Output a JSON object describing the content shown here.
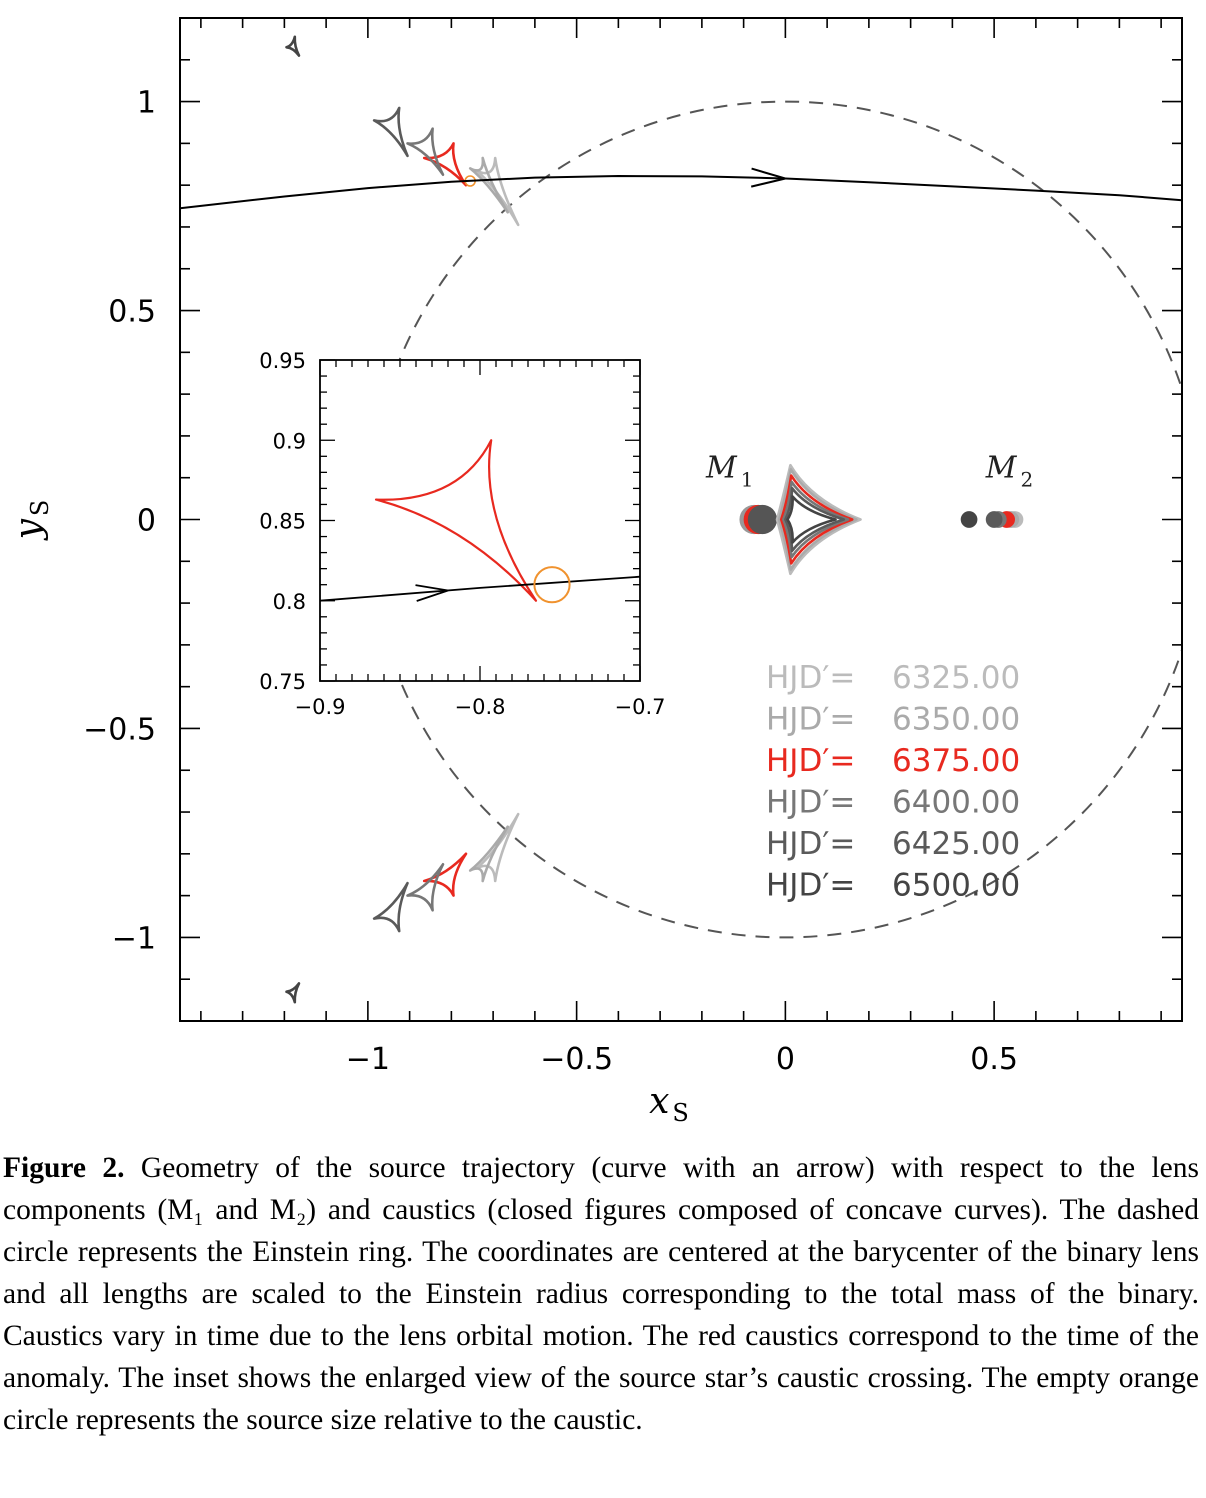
{
  "chart_data": {
    "type": "line",
    "x_axis": {
      "label": "x",
      "label_sub": "S",
      "range": [
        -1.45,
        0.95
      ],
      "ticks": [
        -1,
        -0.5,
        0,
        0.5
      ],
      "tick_labels": [
        "−1",
        "−0.5",
        "0",
        "0.5"
      ]
    },
    "y_axis": {
      "label": "y",
      "label_sub": "S",
      "range": [
        -1.2,
        1.2
      ],
      "ticks": [
        -1,
        -0.5,
        0,
        0.5,
        1
      ],
      "tick_labels": [
        "−1",
        "−0.5",
        "0",
        "0.5",
        "1"
      ]
    },
    "einstein_ring": {
      "center": [
        0,
        0
      ],
      "radius": 1.0,
      "style": "dashed",
      "color": "#555555"
    },
    "trajectory": {
      "color": "#000000",
      "x": [
        -1.45,
        -1.2,
        -1.0,
        -0.8,
        -0.6,
        -0.4,
        -0.2,
        0.0,
        0.2,
        0.4,
        0.6,
        0.8,
        0.95
      ],
      "y": [
        0.745,
        0.773,
        0.793,
        0.808,
        0.818,
        0.822,
        0.821,
        0.816,
        0.807,
        0.797,
        0.787,
        0.776,
        0.764
      ],
      "arrow_at_x": 0.0
    },
    "lens_labels": [
      {
        "text": "M",
        "sub": "1",
        "x": -0.19,
        "y": 0.1
      },
      {
        "text": "M",
        "sub": "2",
        "x": 0.48,
        "y": 0.1
      }
    ],
    "lens_positions": [
      {
        "x": -0.075,
        "y": 0.0,
        "color": "#999999",
        "r": 0.035
      },
      {
        "x": -0.065,
        "y": 0.0,
        "color": "#e8291f",
        "r": 0.035
      },
      {
        "x": -0.055,
        "y": 0.0,
        "color": "#555555",
        "r": 0.035
      },
      {
        "x": 0.55,
        "y": 0.0,
        "color": "#bbbbbb",
        "r": 0.02
      },
      {
        "x": 0.54,
        "y": 0.0,
        "color": "#aaaaaa",
        "r": 0.02
      },
      {
        "x": 0.53,
        "y": 0.0,
        "color": "#e8291f",
        "r": 0.02
      },
      {
        "x": 0.51,
        "y": 0.0,
        "color": "#777777",
        "r": 0.02
      },
      {
        "x": 0.5,
        "y": 0.0,
        "color": "#5a5a5a",
        "r": 0.02
      },
      {
        "x": 0.44,
        "y": 0.0,
        "color": "#444444",
        "r": 0.02
      }
    ],
    "central_caustics": [
      {
        "cx": 0.02,
        "cy": 0.0,
        "back": -0.04,
        "tip": 0.16,
        "top": 0.13,
        "color": "#bbbbbb"
      },
      {
        "cx": 0.02,
        "cy": 0.0,
        "back": -0.035,
        "tip": 0.15,
        "top": 0.12,
        "color": "#aaaaaa"
      },
      {
        "cx": 0.02,
        "cy": 0.0,
        "back": -0.03,
        "tip": 0.14,
        "top": 0.105,
        "color": "#e8291f"
      },
      {
        "cx": 0.02,
        "cy": 0.0,
        "back": -0.025,
        "tip": 0.13,
        "top": 0.09,
        "color": "#777777"
      },
      {
        "cx": 0.02,
        "cy": 0.0,
        "back": -0.02,
        "tip": 0.12,
        "top": 0.075,
        "color": "#5a5a5a"
      },
      {
        "cx": 0.02,
        "cy": 0.0,
        "back": -0.015,
        "tip": 0.1,
        "top": 0.055,
        "color": "#444444"
      }
    ],
    "planetary_caustics": [
      {
        "cusps": [
          [
            -0.74,
            0.835
          ],
          [
            -0.64,
            0.705
          ],
          [
            -0.695,
            0.865
          ]
        ],
        "color": "#bbbbbb"
      },
      {
        "cusps": [
          [
            -0.755,
            0.84
          ],
          [
            -0.665,
            0.735
          ],
          [
            -0.725,
            0.865
          ]
        ],
        "color": "#aaaaaa"
      },
      {
        "cusps": [
          [
            -0.865,
            0.865
          ],
          [
            -0.765,
            0.8
          ],
          [
            -0.795,
            0.9
          ]
        ],
        "color": "#e8291f"
      },
      {
        "cusps": [
          [
            -0.905,
            0.9
          ],
          [
            -0.82,
            0.825
          ],
          [
            -0.845,
            0.935
          ]
        ],
        "color": "#777777"
      },
      {
        "cusps": [
          [
            -0.985,
            0.955
          ],
          [
            -0.905,
            0.87
          ],
          [
            -0.925,
            0.985
          ]
        ],
        "color": "#5a5a5a"
      },
      {
        "cusps": [
          [
            -1.195,
            1.13
          ],
          [
            -1.165,
            1.11
          ],
          [
            -1.175,
            1.155
          ]
        ],
        "color": "#444444"
      }
    ],
    "inset": {
      "x_range": [
        -0.9,
        -0.7
      ],
      "y_range": [
        0.75,
        0.95
      ],
      "x_ticks": [
        -0.9,
        -0.8,
        -0.7
      ],
      "x_tick_labels": [
        "−0.9",
        "−0.8",
        "−0.7"
      ],
      "y_ticks": [
        0.75,
        0.8,
        0.85,
        0.9,
        0.95
      ],
      "y_tick_labels": [
        "0.75",
        "0.8",
        "0.85",
        "0.9",
        "0.95"
      ],
      "caustic": {
        "cusps": [
          [
            -0.865,
            0.863
          ],
          [
            -0.765,
            0.8
          ],
          [
            -0.793,
            0.9
          ]
        ],
        "color": "#e8291f"
      },
      "trajectory": {
        "x": [
          -0.9,
          -0.8,
          -0.7
        ],
        "y": [
          0.8,
          0.808,
          0.815
        ],
        "arrow_at_x": -0.82
      },
      "source": {
        "x": -0.755,
        "y": 0.81,
        "r": 0.011,
        "color": "#f0922e"
      }
    },
    "legend": {
      "placement": "lower-right",
      "entries": [
        {
          "label": "HJD′=",
          "value": "6325.00",
          "color": "#bbbbbb"
        },
        {
          "label": "HJD′=",
          "value": "6350.00",
          "color": "#aaaaaa"
        },
        {
          "label": "HJD′=",
          "value": "6375.00",
          "color": "#e8291f"
        },
        {
          "label": "HJD′=",
          "value": "6400.00",
          "color": "#777777"
        },
        {
          "label": "HJD′=",
          "value": "6425.00",
          "color": "#5a5a5a"
        },
        {
          "label": "HJD′=",
          "value": "6500.00",
          "color": "#444444"
        }
      ]
    }
  },
  "caption": {
    "label": "Figure 2.",
    "text": " Geometry of the source trajectory (curve with an arrow) with respect to the lens components (M₁ and M₂) and caustics (closed figures composed of concave curves). The dashed circle represents the Einstein ring. The coordinates are centered at the barycenter of the binary lens and all lengths are scaled to the Einstein radius corresponding to the total mass of the binary. Caustics vary in time due to the lens orbital motion. The red caustics correspond to the time of the anomaly. The inset shows the enlarged view of the source star’s caustic crossing. The empty orange circle represents the source size relative to the caustic."
  }
}
